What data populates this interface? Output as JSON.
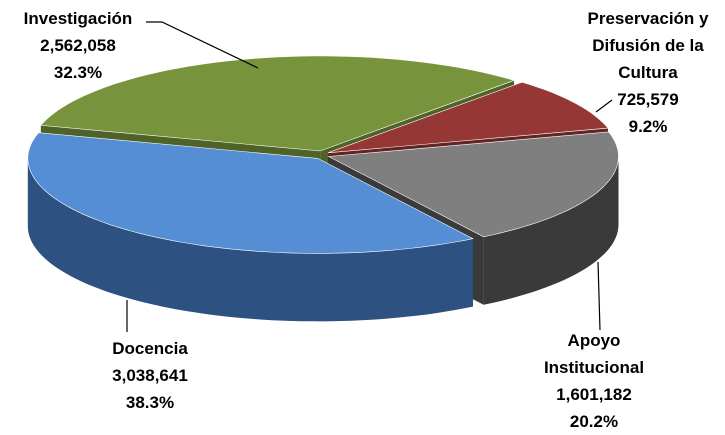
{
  "chart_data": {
    "type": "pie3d",
    "categories": [
      "Investigación",
      "Preservación y Difusión de la Cultura",
      "Apoyo Institucional",
      "Docencia"
    ],
    "values": [
      2562058,
      725579,
      1601182,
      3038641
    ],
    "value_labels": [
      "2,562,058",
      "725,579",
      "1,601,182",
      "3,038,641"
    ],
    "percents": [
      32.3,
      9.2,
      20.2,
      38.3
    ],
    "percent_labels": [
      "32.3%",
      "9.2%",
      "20.2%",
      "38.3%"
    ],
    "colors": [
      "#77933c",
      "#953735",
      "#7f7f7f",
      "#558ed5"
    ],
    "wall_colors": [
      "#4f6228",
      "#632523",
      "#3a3a3a",
      "#2d5180"
    ]
  }
}
